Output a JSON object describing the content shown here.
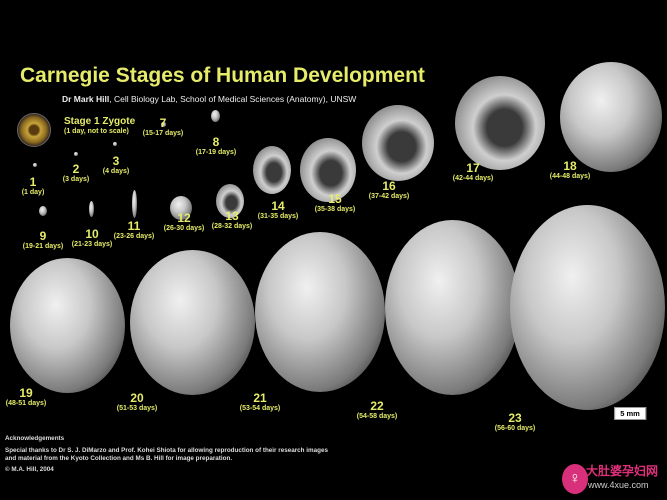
{
  "title": "Carnegie Stages of Human Development",
  "author": {
    "name": "Dr Mark Hill",
    "affiliation": ", Cell Biology Lab, School of Medical Sciences (Anatomy), UNSW"
  },
  "zygote": {
    "label": "Stage 1 Zygote",
    "sub": "(1 day, not to scale)"
  },
  "stages": [
    {
      "num": "1",
      "days": "(1 day)"
    },
    {
      "num": "2",
      "days": "(3 days)"
    },
    {
      "num": "3",
      "days": "(4 days)"
    },
    {
      "num": "7",
      "days": "(15-17 days)"
    },
    {
      "num": "8",
      "days": "(17-19 days)"
    },
    {
      "num": "9",
      "days": "(19-21 days)"
    },
    {
      "num": "10",
      "days": "(21-23 days)"
    },
    {
      "num": "11",
      "days": "(23-26 days)"
    },
    {
      "num": "12",
      "days": "(26-30 days)"
    },
    {
      "num": "13",
      "days": "(28-32 days)"
    },
    {
      "num": "14",
      "days": "(31-35 days)"
    },
    {
      "num": "15",
      "days": "(35-38 days)"
    },
    {
      "num": "16",
      "days": "(37-42 days)"
    },
    {
      "num": "17",
      "days": "(42-44 days)"
    },
    {
      "num": "18",
      "days": "(44-48 days)"
    },
    {
      "num": "19",
      "days": "(48-51 days)"
    },
    {
      "num": "20",
      "days": "(51-53 days)"
    },
    {
      "num": "21",
      "days": "(53-54 days)"
    },
    {
      "num": "22",
      "days": "(54-58 days)"
    },
    {
      "num": "23",
      "days": "(56-60 days)"
    }
  ],
  "scale_bar": "5 mm",
  "acknowledgements": {
    "heading": "Acknowledgements",
    "text": "Special thanks to Dr S. J. DiMarzo and Prof. Kohei Shiota for allowing reproduction of their research images and material from the Kyoto Collection and Ms B. Hill for image preparation.",
    "copyright": "© M.A. Hill, 2004"
  },
  "watermark": {
    "text": "大肚婆孕妇网",
    "url": "www.4xue.com"
  },
  "colors": {
    "accent": "#e6ec6a",
    "background": "#000000"
  }
}
